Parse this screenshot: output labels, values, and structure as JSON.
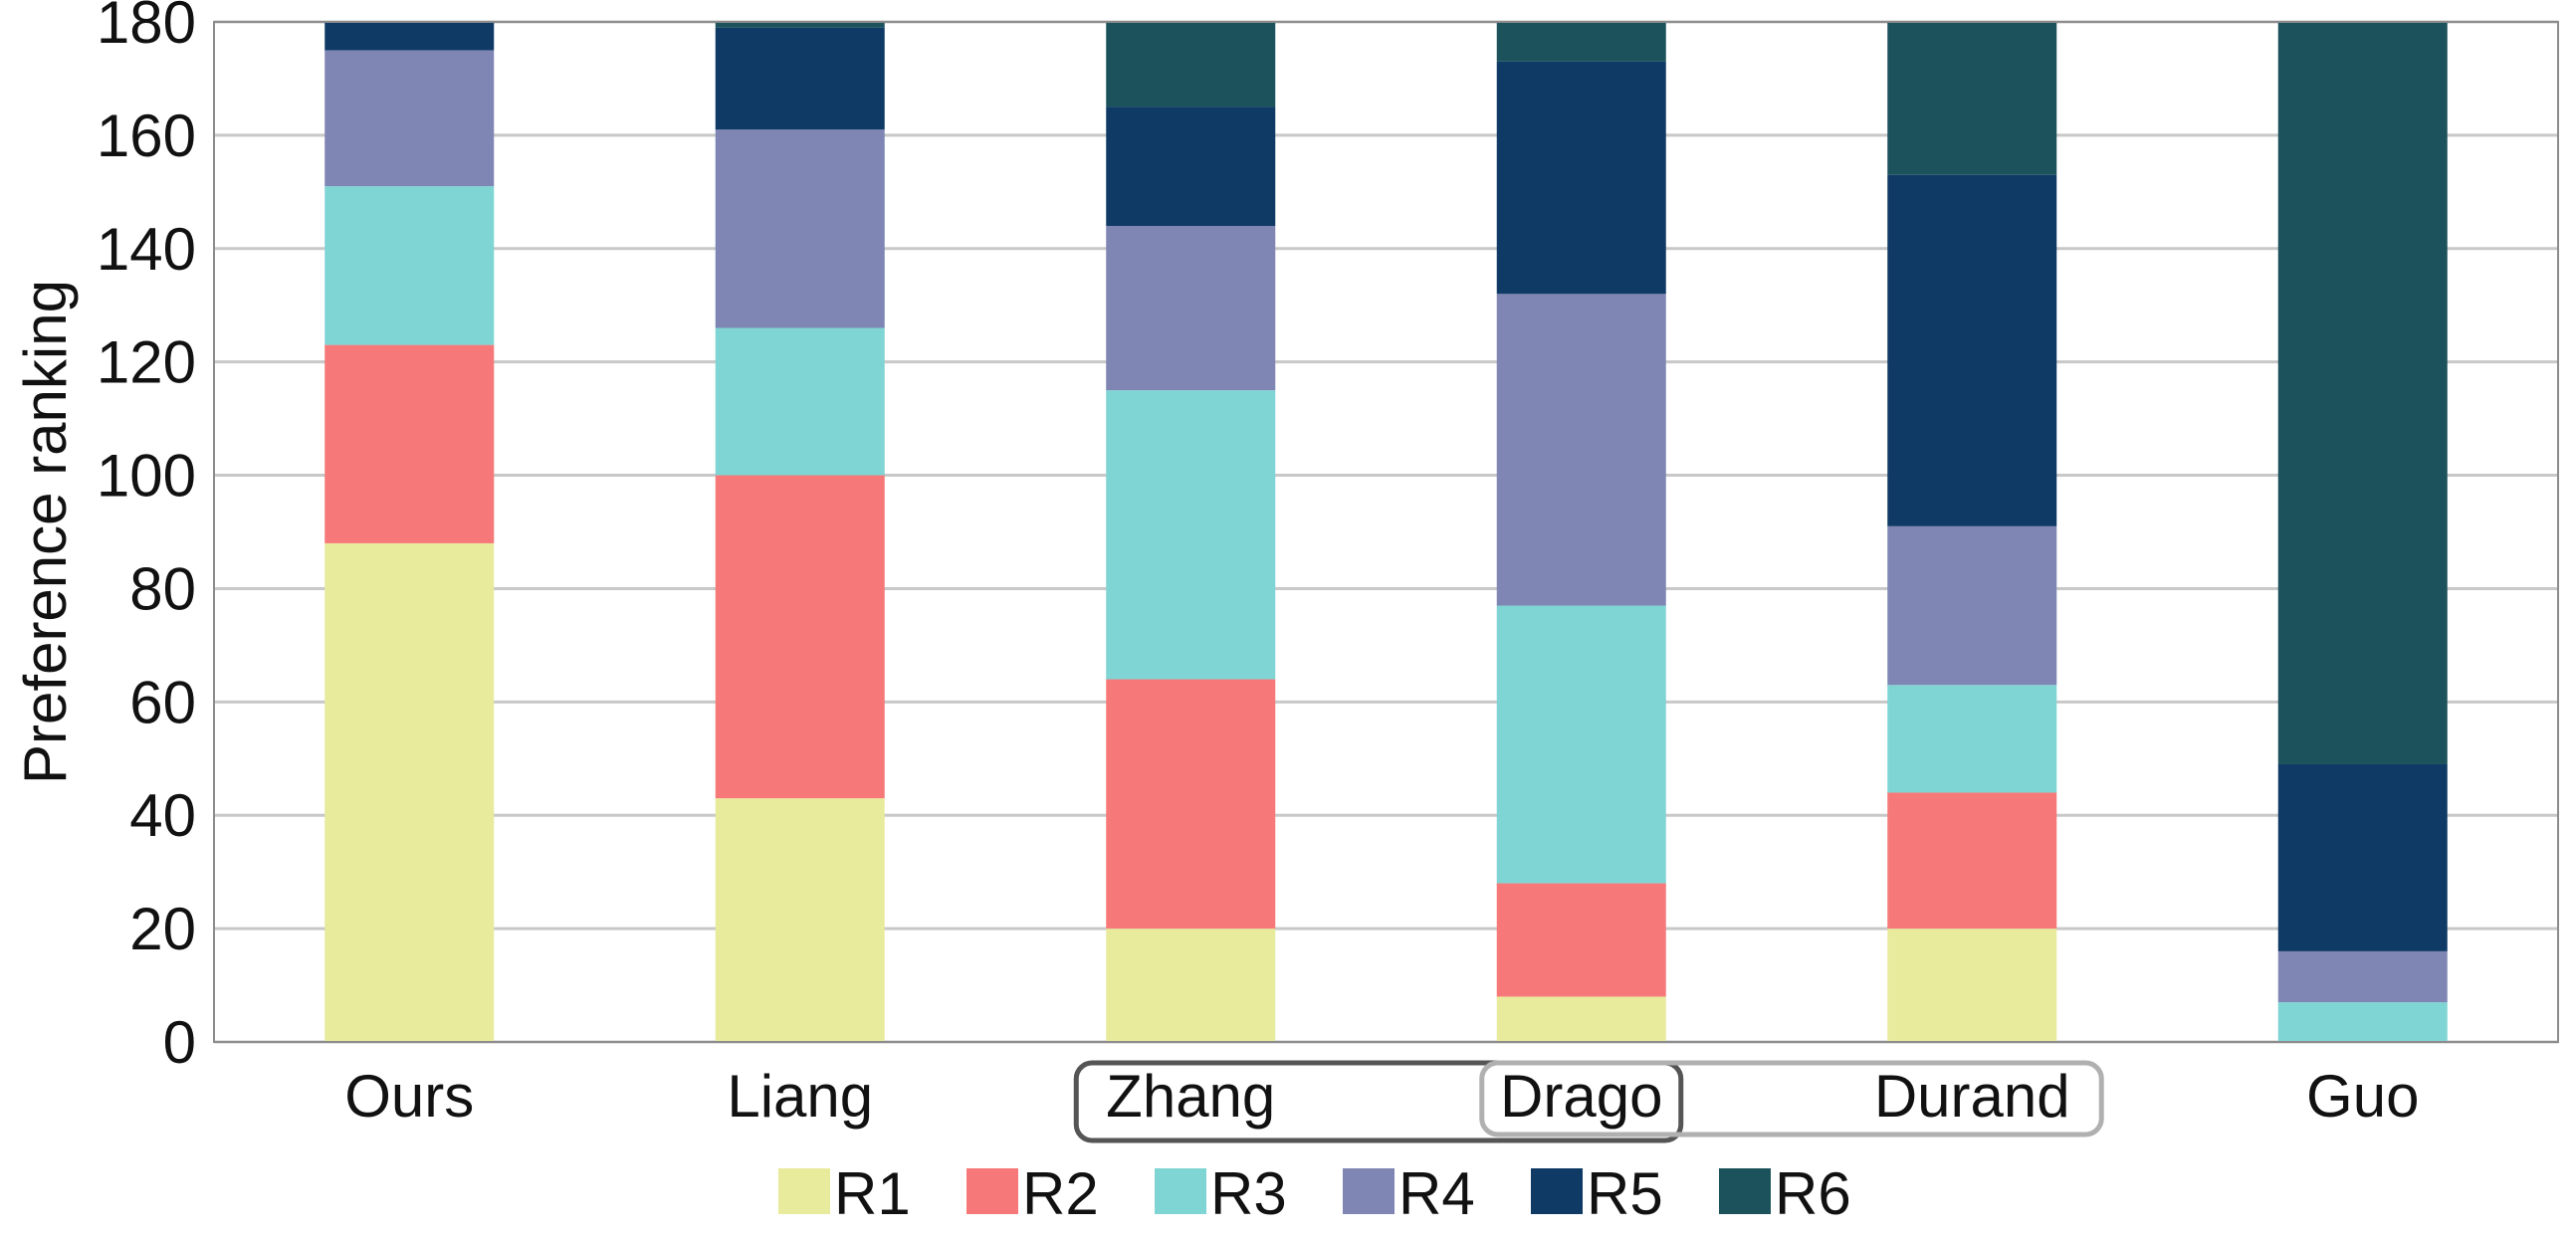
{
  "chart_data": {
    "type": "bar",
    "stacked": true,
    "title": "",
    "xlabel": "",
    "ylabel": "Preference ranking",
    "ylim": [
      0,
      180
    ],
    "yticks": [
      0,
      20,
      40,
      60,
      80,
      100,
      120,
      140,
      160,
      180
    ],
    "grid": "horizontal",
    "legend_position": "bottom",
    "categories": [
      "Ours",
      "Liang",
      "Zhang",
      "Drago",
      "Durand",
      "Guo"
    ],
    "series": [
      {
        "name": "R1",
        "color": "#e8ea9c",
        "values": [
          88,
          43,
          20,
          8,
          20,
          0
        ]
      },
      {
        "name": "R2",
        "color": "#f67878",
        "values": [
          35,
          57,
          44,
          20,
          24,
          0
        ]
      },
      {
        "name": "R3",
        "color": "#7fd4d4",
        "values": [
          28,
          26,
          51,
          49,
          19,
          7
        ]
      },
      {
        "name": "R4",
        "color": "#7f86b3",
        "values": [
          24,
          35,
          29,
          55,
          28,
          9
        ]
      },
      {
        "name": "R5",
        "color": "#0f3a66",
        "values": [
          5,
          18,
          21,
          41,
          62,
          33
        ]
      },
      {
        "name": "R6",
        "color": "#1c525c",
        "values": [
          0,
          1,
          15,
          7,
          27,
          131
        ]
      }
    ],
    "annotations": [
      {
        "type": "bracket",
        "style": "dark",
        "categories": [
          "Zhang",
          "Drago"
        ]
      },
      {
        "type": "bracket",
        "style": "light",
        "categories": [
          "Drago",
          "Durand"
        ]
      }
    ]
  }
}
